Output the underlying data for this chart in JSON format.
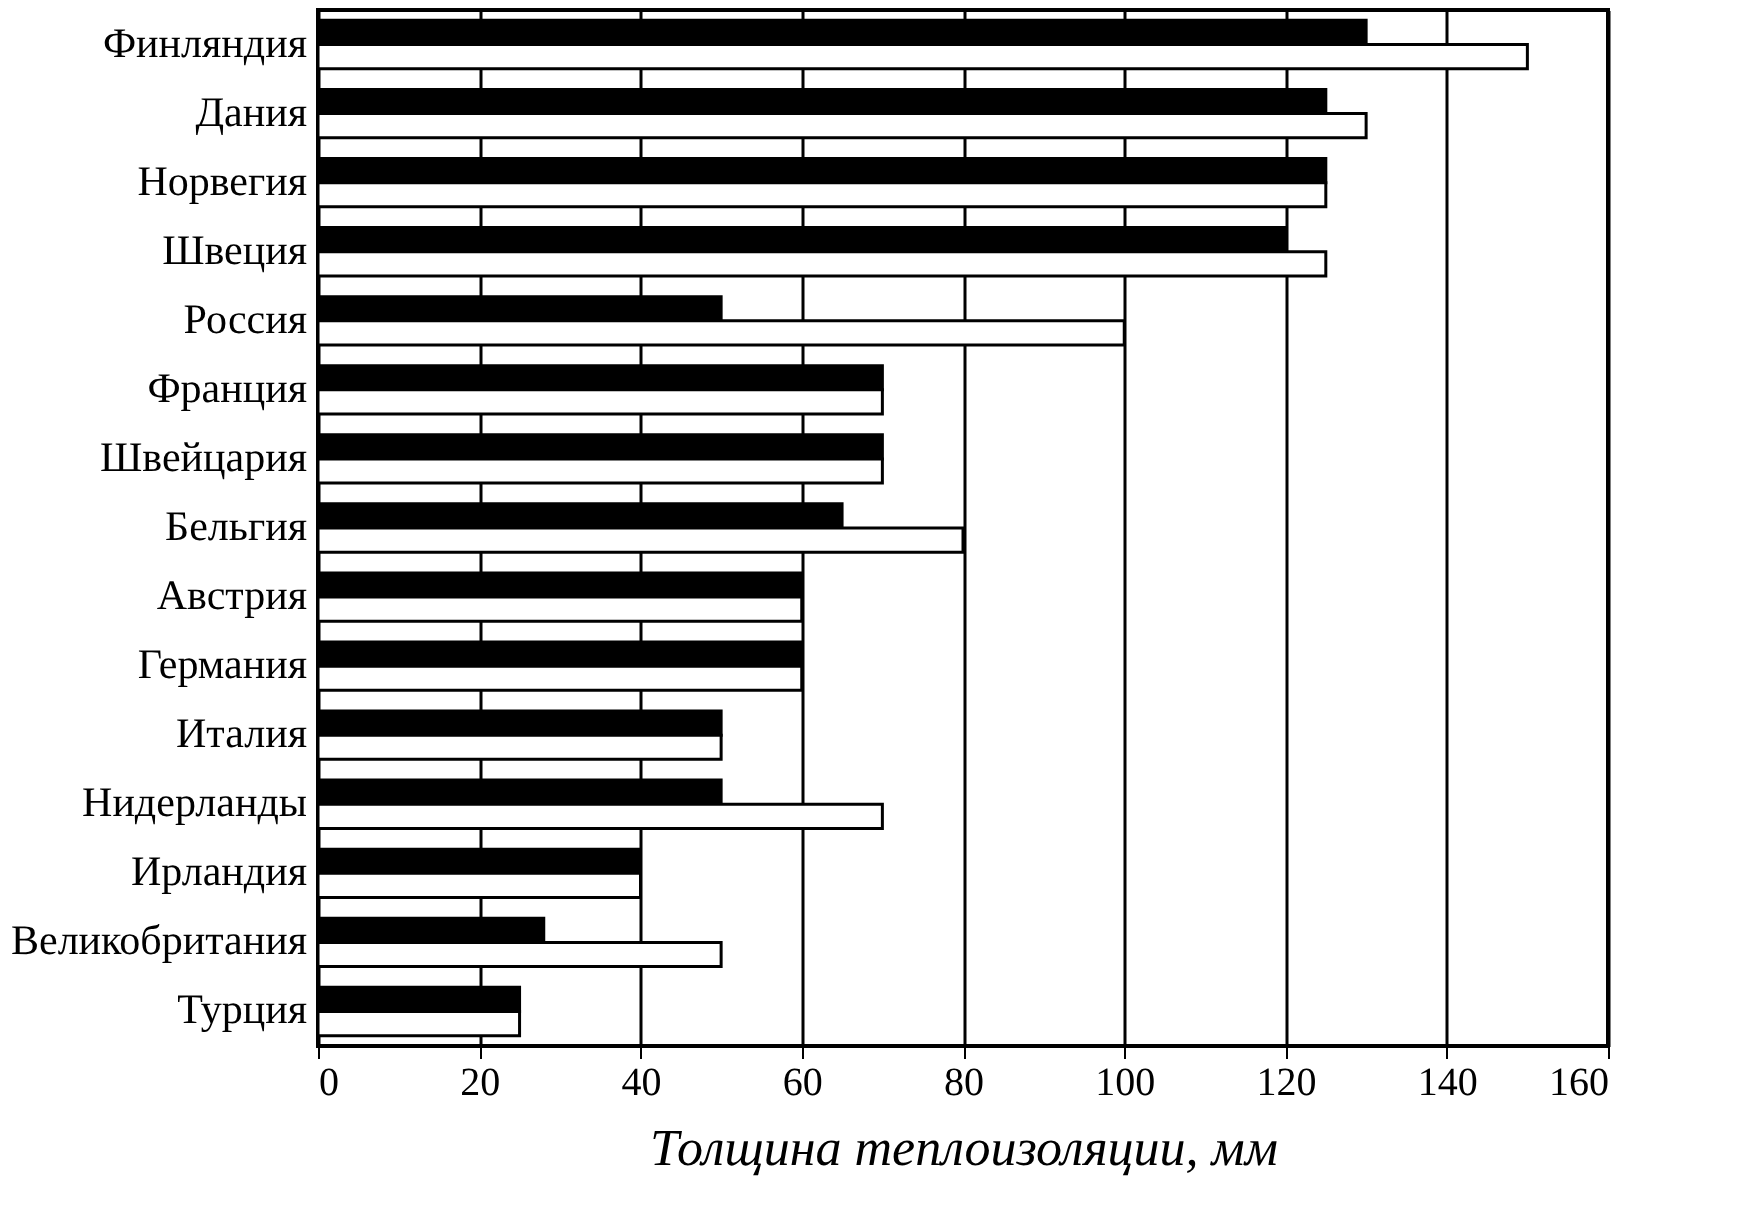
{
  "chart_data": {
    "type": "bar",
    "orientation": "horizontal",
    "xlabel": "Толщина теплоизоляции, мм",
    "categories": [
      "Финляндия",
      "Дания",
      "Норвегия",
      "Швеция",
      "Россия",
      "Франция",
      "Швейцария",
      "Бельгия",
      "Австрия",
      "Германия",
      "Италия",
      "Нидерланды",
      "Ирландия",
      "Великобритания",
      "Турция"
    ],
    "series": [
      {
        "color": "#000000",
        "values": [
          130,
          125,
          125,
          120,
          50,
          70,
          70,
          65,
          60,
          60,
          50,
          50,
          40,
          28,
          25
        ]
      },
      {
        "color": "#ffffff",
        "values": [
          150,
          130,
          125,
          125,
          100,
          70,
          70,
          80,
          60,
          60,
          50,
          70,
          40,
          50,
          25
        ]
      }
    ],
    "xlim": [
      0,
      160
    ],
    "xticks": [
      0,
      20,
      40,
      60,
      80,
      100,
      120,
      140,
      160
    ],
    "grid": "x"
  }
}
